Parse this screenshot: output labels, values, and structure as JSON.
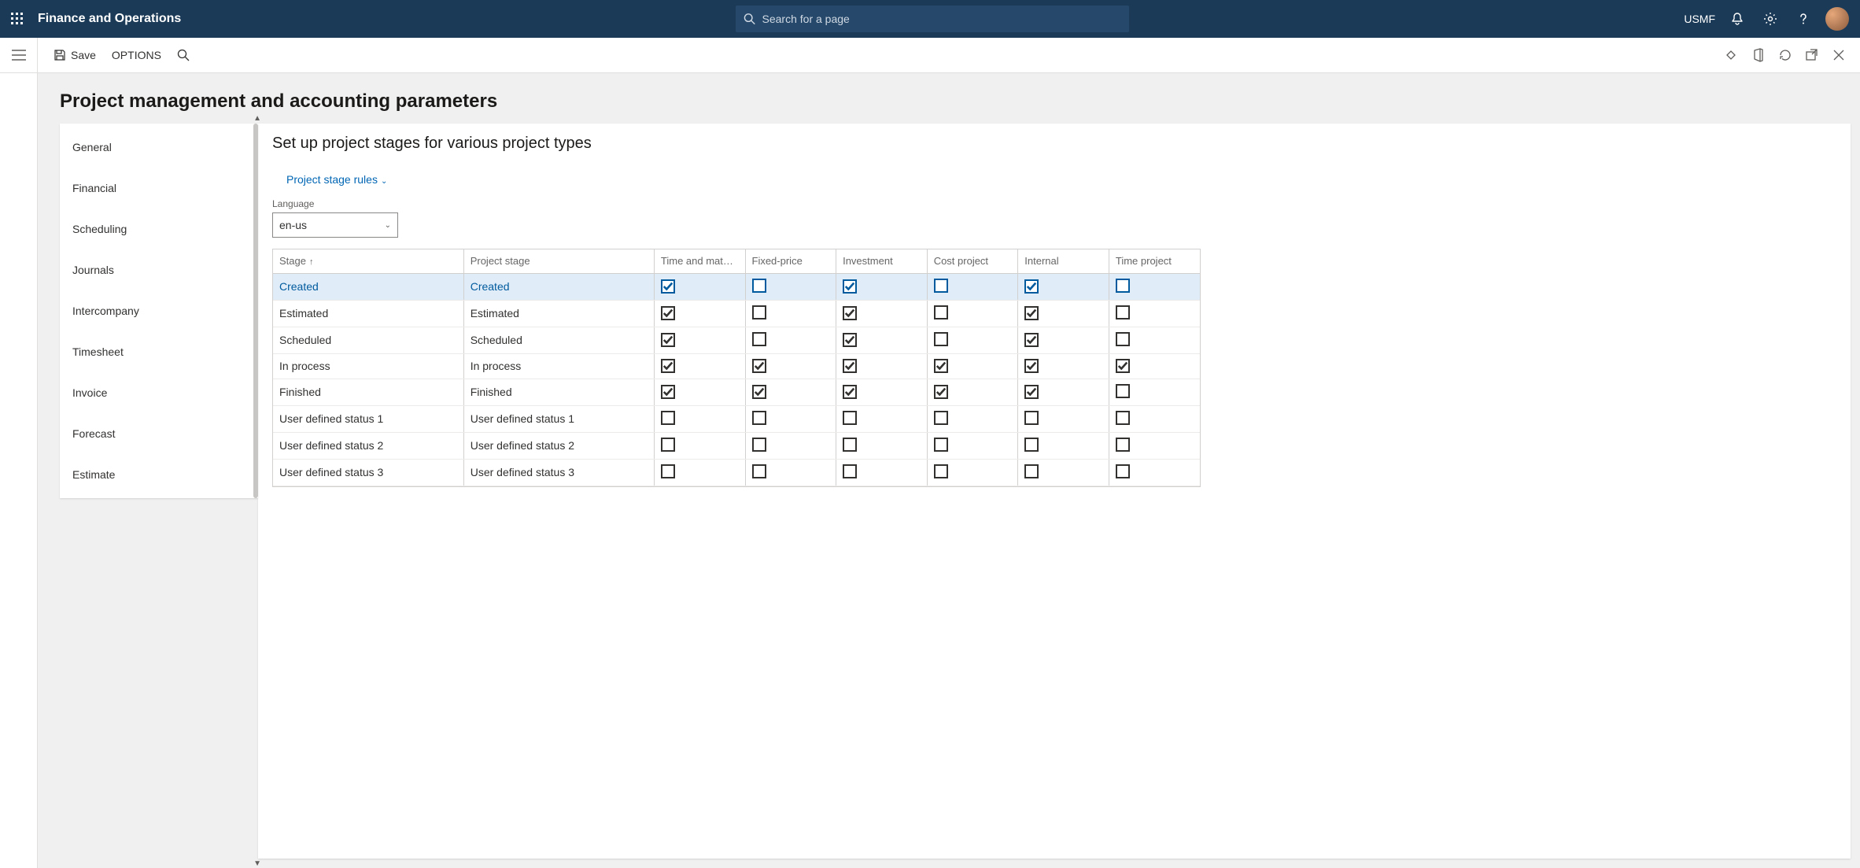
{
  "topbar": {
    "brand": "Finance and Operations",
    "search_placeholder": "Search for a page",
    "company": "USMF"
  },
  "actionbar": {
    "save": "Save",
    "options": "OPTIONS"
  },
  "page": {
    "heading": "Project management and accounting parameters"
  },
  "vtabs": [
    "General",
    "Financial",
    "Scheduling",
    "Journals",
    "Intercompany",
    "Timesheet",
    "Invoice",
    "Forecast",
    "Estimate"
  ],
  "card": {
    "title": "Set up project stages for various project types",
    "link": "Project stage rules",
    "language_label": "Language",
    "language_value": "en-us"
  },
  "grid": {
    "columns": [
      "Stage",
      "Project stage",
      "Time and materi...",
      "Fixed-price",
      "Investment",
      "Cost project",
      "Internal",
      "Time project"
    ],
    "rows": [
      {
        "stage": "Created",
        "pstage": "Created",
        "c": [
          true,
          false,
          true,
          false,
          true,
          false
        ],
        "selected": true
      },
      {
        "stage": "Estimated",
        "pstage": "Estimated",
        "c": [
          true,
          false,
          true,
          false,
          true,
          false
        ]
      },
      {
        "stage": "Scheduled",
        "pstage": "Scheduled",
        "c": [
          true,
          false,
          true,
          false,
          true,
          false
        ]
      },
      {
        "stage": "In process",
        "pstage": "In process",
        "c": [
          true,
          true,
          true,
          true,
          true,
          true
        ]
      },
      {
        "stage": "Finished",
        "pstage": "Finished",
        "c": [
          true,
          true,
          true,
          true,
          true,
          false
        ]
      },
      {
        "stage": "User defined status 1",
        "pstage": "User defined status 1",
        "c": [
          false,
          false,
          false,
          false,
          false,
          false
        ]
      },
      {
        "stage": "User defined status 2",
        "pstage": "User defined status 2",
        "c": [
          false,
          false,
          false,
          false,
          false,
          false
        ]
      },
      {
        "stage": "User defined status 3",
        "pstage": "User defined status 3",
        "c": [
          false,
          false,
          false,
          false,
          false,
          false
        ]
      }
    ]
  },
  "colors": {
    "topbar_bg": "#1b3a57",
    "link": "#0066b4",
    "selected_row": "#e0edf8"
  }
}
